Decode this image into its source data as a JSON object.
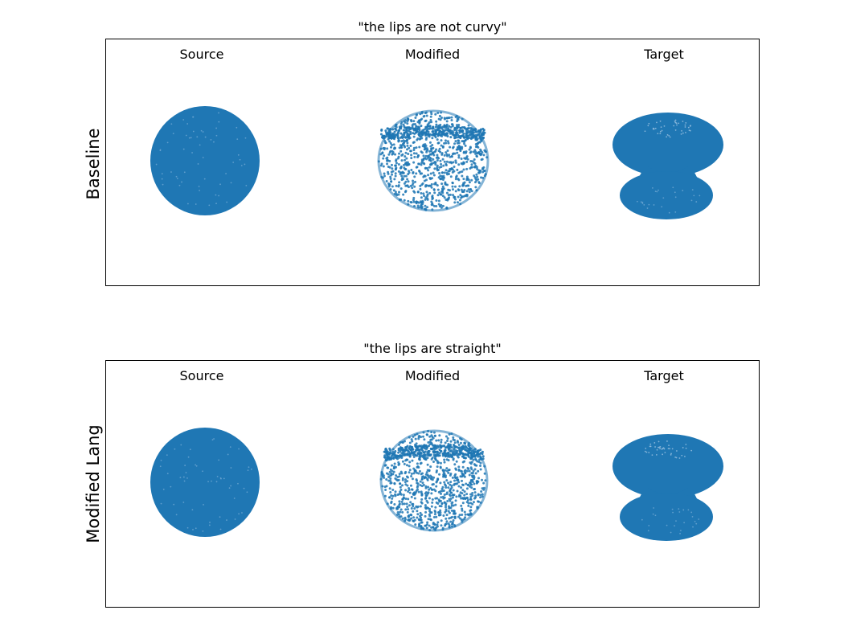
{
  "figure": {
    "panels": [
      {
        "title": "\"the lips are not curvy\"",
        "row_label": "Baseline",
        "columns": [
          "Source",
          "Modified",
          "Target"
        ]
      },
      {
        "title": "\"the lips are straight\"",
        "row_label": "Modified Lang",
        "columns": [
          "Source",
          "Modified",
          "Target"
        ]
      }
    ],
    "point_color": "#1f77b4"
  }
}
